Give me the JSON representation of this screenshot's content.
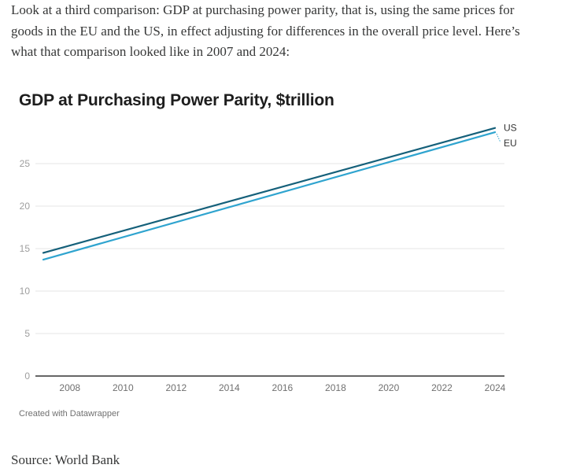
{
  "article": {
    "intro": "Look at a third comparison: GDP at purchasing power parity, that is, using the same prices for goods in the EU and the US, in effect adjusting for differences in the overall price level. Here’s what that comparison looked like in 2007 and 2024:",
    "source": "Source: World Bank"
  },
  "credit": "Created with Datawrapper",
  "chart_data": {
    "type": "line",
    "title": "GDP at Purchasing Power Parity, $trillion",
    "xlabel": "",
    "ylabel": "",
    "x": [
      2007,
      2024
    ],
    "series": [
      {
        "name": "US",
        "values": [
          14.5,
          29.2
        ],
        "color": "#15607a"
      },
      {
        "name": "EU",
        "values": [
          13.7,
          28.7
        ],
        "color": "#2fa4cf"
      }
    ],
    "xlim": [
      2007,
      2024
    ],
    "ylim": [
      0,
      29.5
    ],
    "x_ticks": [
      "2008",
      "2010",
      "2012",
      "2014",
      "2016",
      "2018",
      "2020",
      "2022",
      "2024"
    ],
    "y_ticks": [
      "0",
      "5",
      "10",
      "15",
      "20",
      "25"
    ],
    "grid": true,
    "legend": "direct labels at line ends (right)"
  }
}
